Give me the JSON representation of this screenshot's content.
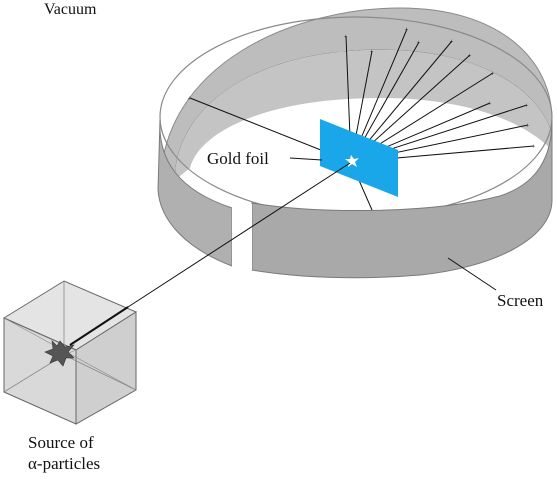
{
  "labels": {
    "vacuum": "Vacuum",
    "gold_foil": "Gold foil",
    "screen": "Screen",
    "source_line1": "Source of",
    "source_line2": "α-particles"
  },
  "colors": {
    "screen_face": "#b8b8b8",
    "screen_outer": "#a6a6a6",
    "screen_rim": "#d0d0d0",
    "floor": "#ffffff",
    "gold_foil": "#1aa7ea",
    "cube_face": "#e2e2e2",
    "rays": "#111111"
  },
  "icons": {
    "burst": "starburst-icon",
    "flash": "flash-icon"
  }
}
